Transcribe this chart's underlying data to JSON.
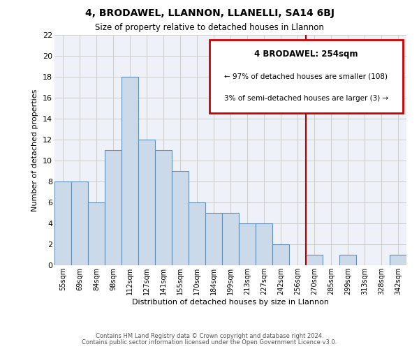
{
  "title": "4, BRODAWEL, LLANNON, LLANELLI, SA14 6BJ",
  "subtitle": "Size of property relative to detached houses in Llannon",
  "xlabel": "Distribution of detached houses by size in Llannon",
  "ylabel": "Number of detached properties",
  "bar_labels": [
    "55sqm",
    "69sqm",
    "84sqm",
    "98sqm",
    "112sqm",
    "127sqm",
    "141sqm",
    "155sqm",
    "170sqm",
    "184sqm",
    "199sqm",
    "213sqm",
    "227sqm",
    "242sqm",
    "256sqm",
    "270sqm",
    "285sqm",
    "299sqm",
    "313sqm",
    "328sqm",
    "342sqm"
  ],
  "bar_values": [
    8,
    8,
    6,
    11,
    18,
    12,
    11,
    9,
    6,
    5,
    5,
    4,
    4,
    2,
    0,
    1,
    0,
    1,
    0,
    0,
    1
  ],
  "bar_color": "#ccd9e8",
  "bar_edge_color": "#6090b8",
  "grid_color": "#cccccc",
  "background_color": "#ffffff",
  "plot_bg_color": "#eef1f8",
  "vline_color": "#aa0000",
  "annotation_title": "4 BRODAWEL: 254sqm",
  "annotation_line1": "← 97% of detached houses are smaller (108)",
  "annotation_line2": "3% of semi-detached houses are larger (3) →",
  "annotation_box_color": "#ffffff",
  "annotation_box_edge": "#cc0000",
  "ylim": [
    0,
    22
  ],
  "yticks": [
    0,
    2,
    4,
    6,
    8,
    10,
    12,
    14,
    16,
    18,
    20,
    22
  ],
  "footer1": "Contains HM Land Registry data © Crown copyright and database right 2024.",
  "footer2": "Contains public sector information licensed under the Open Government Licence v3.0."
}
